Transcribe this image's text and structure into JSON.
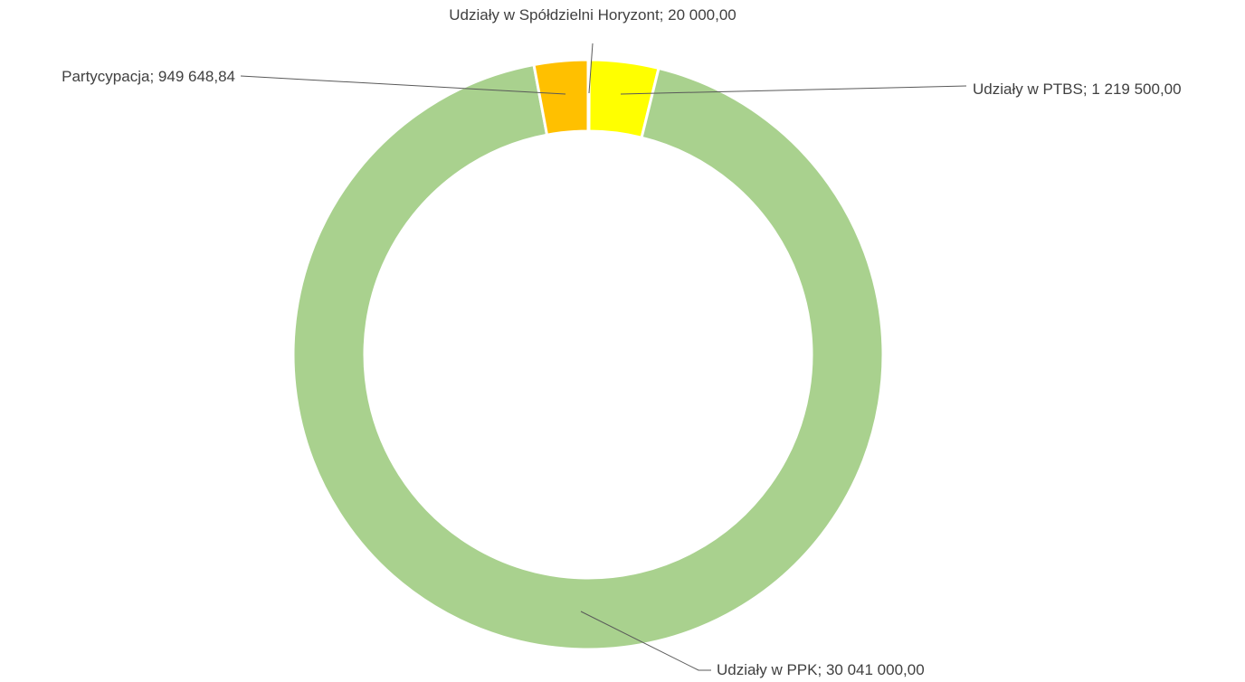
{
  "chart_data": {
    "type": "donut",
    "categories": [
      "Udziały w Spółdzielni Horyzont",
      "Udziały w PTBS",
      "Udziały w PPK",
      "Partycypacja"
    ],
    "values": [
      20000,
      1219500,
      30041000,
      949648.84
    ],
    "value_labels": [
      "20 000,00",
      "1 219 500,00",
      "30 041 000,00",
      "949 648,84"
    ],
    "label_separator": "; ",
    "colors": [
      "#4472c4",
      "#ffff00",
      "#a9d18e",
      "#ffc000"
    ]
  }
}
